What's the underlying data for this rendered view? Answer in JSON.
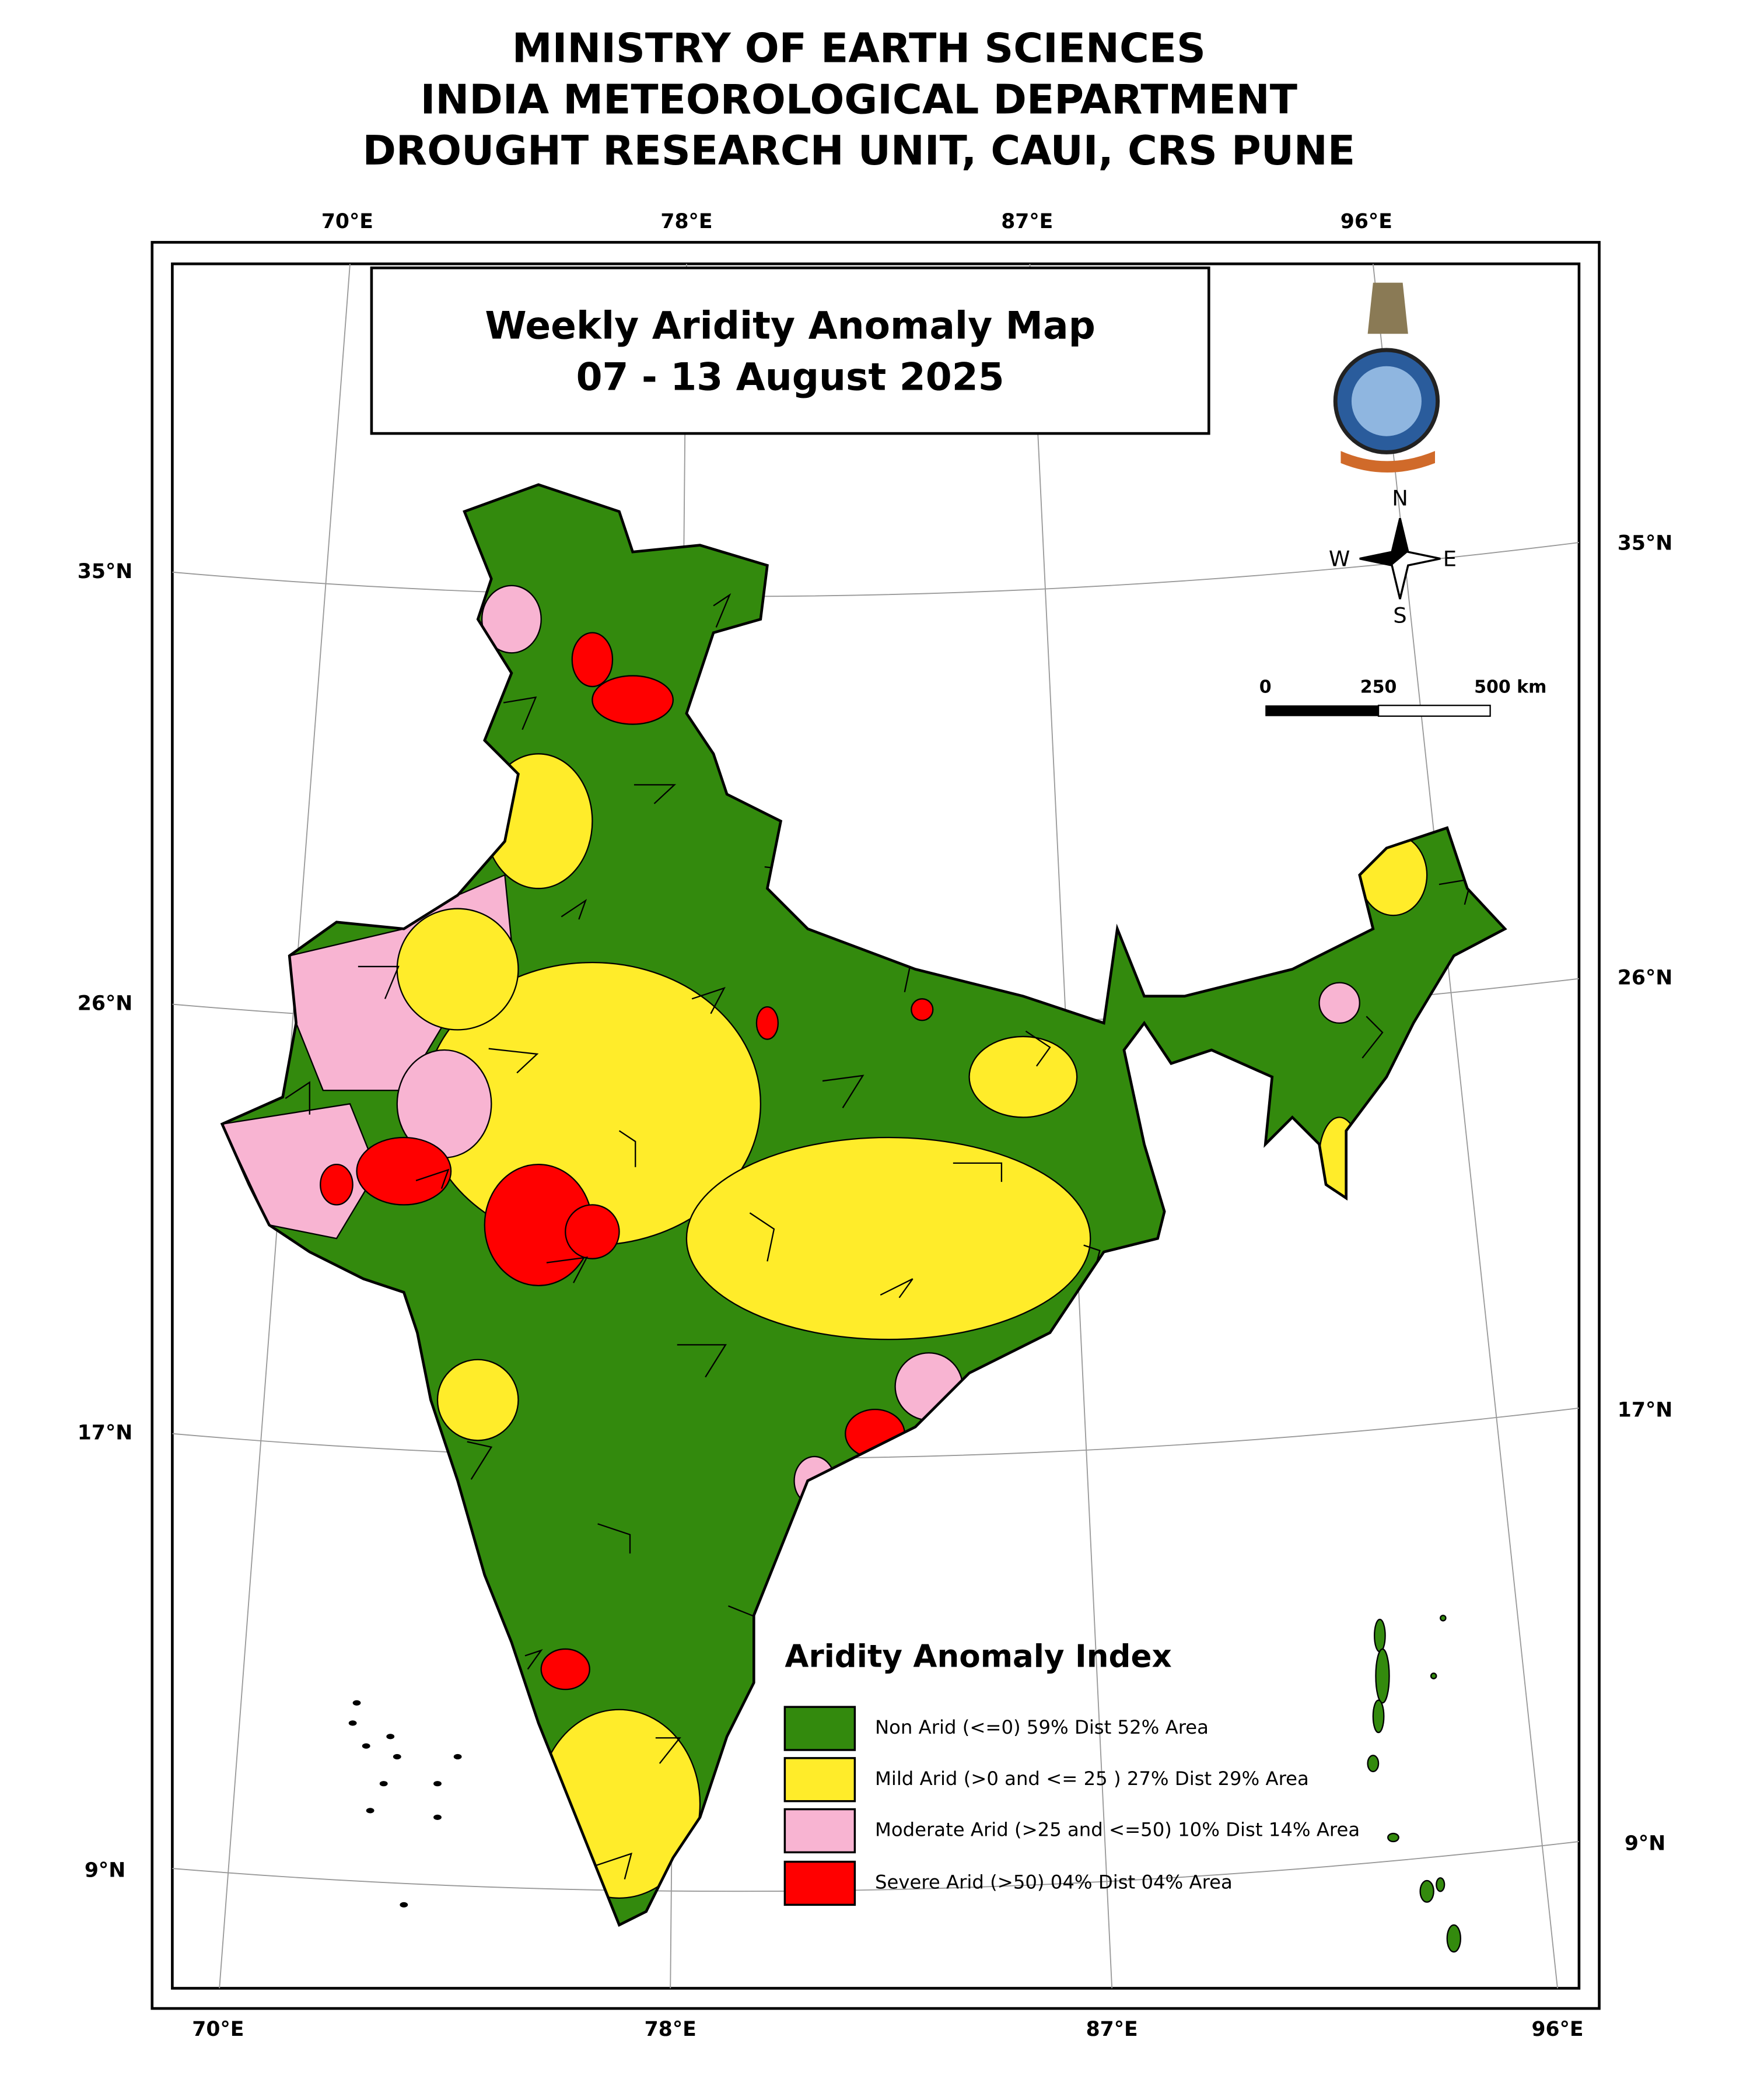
{
  "header": {
    "lines": [
      "MINISTRY OF EARTH SCIENCES",
      "INDIA METEOROLOGICAL DEPARTMENT",
      "DROUGHT RESEARCH UNIT, CAUI, CRS PUNE"
    ]
  },
  "map": {
    "title": [
      "Weekly Aridity Anomaly Map",
      "07 - 13 August  2025"
    ],
    "top_lon_labels": [
      "70°E",
      "78°E",
      "87°E",
      "96°E"
    ],
    "bottom_lon_labels": [
      "70°E",
      "78°E",
      "87°E",
      "96°E"
    ],
    "left_lat_labels": [
      "35°N",
      "26°N",
      "17°N",
      "9°N"
    ],
    "right_lat_labels": [
      "35°N",
      "26°N",
      "17°N",
      "9°N"
    ],
    "compass": [
      "N",
      "S",
      "W",
      "E"
    ],
    "scale_bar": [
      "0",
      "250",
      "500 km"
    ]
  },
  "legend": {
    "title": "Aridity Anomaly Index",
    "items": [
      {
        "label": "Non Arid (<=0) 59% Dist 52% Area",
        "color": "#338a0d"
      },
      {
        "label": "Mild Arid (>0 and <= 25 ) 27% Dist  29% Area",
        "color": "#ffec2a"
      },
      {
        "label": "Moderate Arid (>25 and <=50) 10% Dist  14% Area",
        "color": "#f8b4d2"
      },
      {
        "label": "Severe Arid (>50) 04% Dist  04% Area",
        "color": "#ff0000"
      }
    ]
  }
}
